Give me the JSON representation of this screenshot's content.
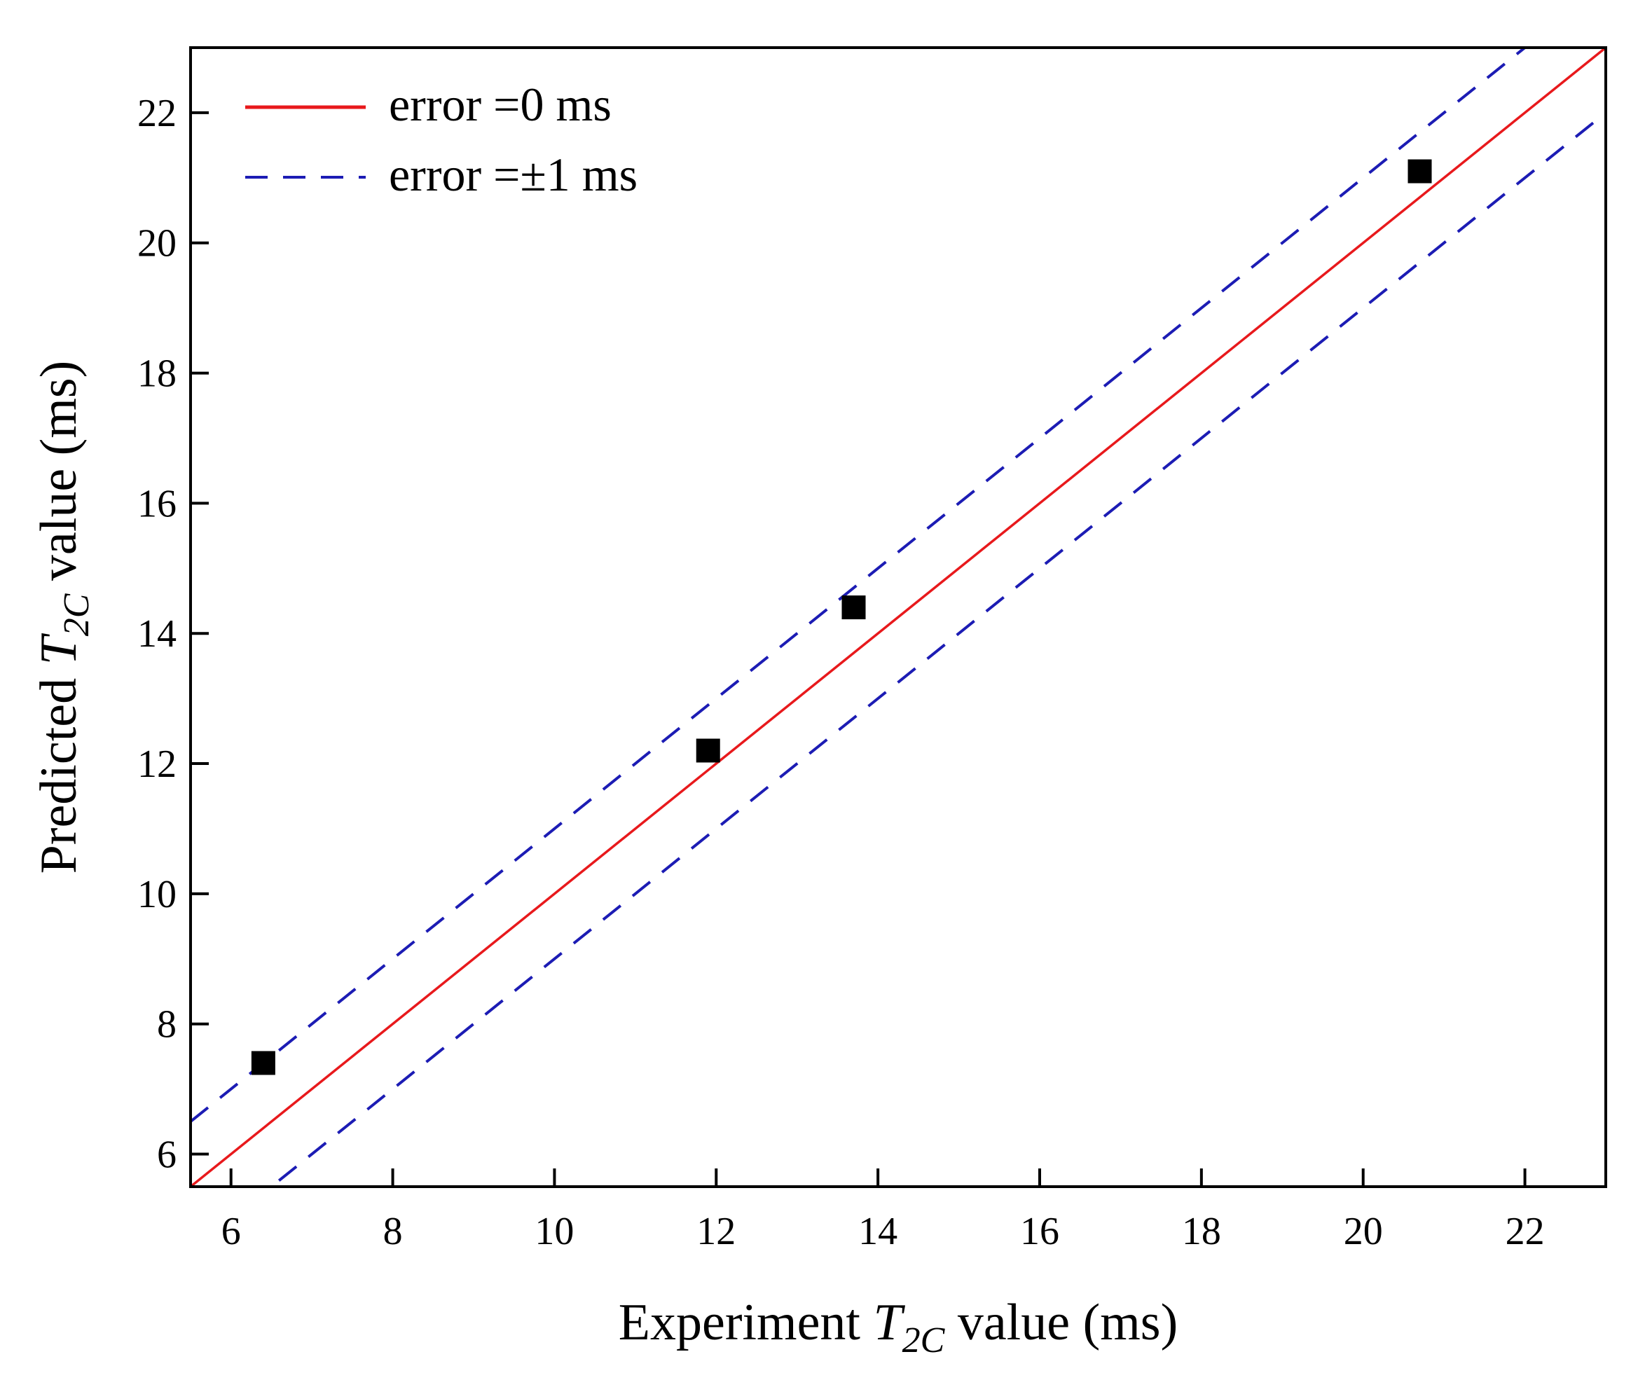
{
  "chart_data": {
    "type": "scatter",
    "title": "",
    "xlabel": {
      "prefix": "Experiment ",
      "symbol": "T",
      "subscript": "2C",
      "suffix": " value (ms)"
    },
    "ylabel": {
      "prefix": "Predicted ",
      "symbol": "T",
      "subscript": "2C",
      "suffix": " value (ms)"
    },
    "xlim": [
      5.5,
      23
    ],
    "ylim": [
      5.5,
      23
    ],
    "xticks": [
      6,
      8,
      10,
      12,
      14,
      16,
      18,
      20,
      22
    ],
    "yticks": [
      6,
      8,
      10,
      12,
      14,
      16,
      18,
      20,
      22
    ],
    "grid": false,
    "legend_position": "top-left",
    "points": [
      {
        "x": 6.4,
        "y": 7.4
      },
      {
        "x": 11.9,
        "y": 12.2
      },
      {
        "x": 13.7,
        "y": 14.4
      },
      {
        "x": 20.7,
        "y": 21.1
      }
    ],
    "reference_lines": [
      {
        "name": "error =0 ms",
        "offset": 0,
        "color": "#e8191c",
        "style": "solid"
      },
      {
        "name": "error =±1 ms",
        "offset": 1,
        "color": "#1c1cb4",
        "style": "dashed"
      },
      {
        "name": "error =±1 ms",
        "offset": -1,
        "color": "#1c1cb4",
        "style": "dashed"
      }
    ],
    "legend": [
      {
        "label": "error =0 ms",
        "color": "#e8191c",
        "style": "solid"
      },
      {
        "label": "error =±1 ms",
        "color": "#1c1cb4",
        "style": "dashed"
      }
    ],
    "marker": {
      "shape": "square",
      "color": "#000000"
    }
  }
}
